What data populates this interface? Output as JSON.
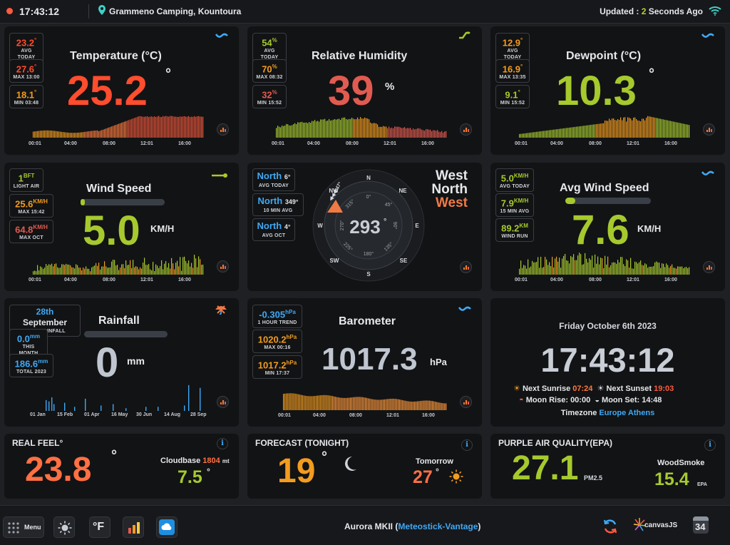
{
  "colors": {
    "red": "#ff4d2e",
    "orange": "#f39c1f",
    "green": "#a6c92e",
    "blue": "#3fa9f5",
    "coral": "#e15b50",
    "gray": "#bfc6cf"
  },
  "topbar": {
    "time": "17:43:12",
    "location": "Grammeno Camping, Kountoura",
    "updated_prefix": "Updated : ",
    "updated_num": "2",
    "updated_suffix": " Seconds Ago"
  },
  "temperature": {
    "title": "Temperature (°C)",
    "value": "25.2",
    "unit": "°",
    "stats": [
      {
        "value": "23.2",
        "unit": "°",
        "label": "AVG TODAY"
      },
      {
        "value": "27.6",
        "unit": "°",
        "label": "MAX 13:00"
      },
      {
        "value": "18.1",
        "unit": "°",
        "label": "MIN 03:48"
      }
    ],
    "ticks": [
      "00:01",
      "04:00",
      "08:00",
      "12:01",
      "16:00"
    ]
  },
  "humidity": {
    "title": "Relative Humidity",
    "value": "39",
    "unit": "%",
    "stats": [
      {
        "value": "54",
        "unit": "%",
        "label": "AVG TODAY"
      },
      {
        "value": "70",
        "unit": "%",
        "label": "MAX 08:32"
      },
      {
        "value": "32",
        "unit": "%",
        "label": "MIN 15:52"
      }
    ],
    "ticks": [
      "00:01",
      "04:00",
      "08:00",
      "12:01",
      "16:00"
    ]
  },
  "dewpoint": {
    "title": "Dewpoint (°C)",
    "value": "10.3",
    "unit": "°",
    "stats": [
      {
        "value": "12.9",
        "unit": "°",
        "label": "AVG TODAY"
      },
      {
        "value": "16.9",
        "unit": "°",
        "label": "MAX 13:35"
      },
      {
        "value": "9.1",
        "unit": "°",
        "label": "MIN 15:52"
      }
    ],
    "ticks": [
      "00:01",
      "04:00",
      "08:00",
      "12:01",
      "16:00"
    ]
  },
  "windspeed": {
    "title": "Wind Speed",
    "value": "5.0",
    "unit": "KM/H",
    "progress": 0.05,
    "stats": [
      {
        "value": "1",
        "unit": "BFT",
        "label": "LIGHT AIR"
      },
      {
        "value": "25.6",
        "unit": "KM/H",
        "label": "MAX 15:42"
      },
      {
        "value": "64.8",
        "unit": "KM/H",
        "label": "MAX OCT"
      }
    ],
    "ticks": [
      "00:01",
      "04:00",
      "08:00",
      "12:01",
      "16:00"
    ]
  },
  "direction": {
    "value": "293",
    "unit": "°",
    "name_line1": "West",
    "name_line2": "North",
    "name_line3": "West",
    "stats": [
      {
        "value": "North",
        "deg": "6°",
        "label": "AVG TODAY"
      },
      {
        "value": "North",
        "deg": "349°",
        "label": "10 MIN AVG"
      },
      {
        "value": "North",
        "deg": "4°",
        "label": "AVG OCT"
      }
    ],
    "compass": {
      "N": "N",
      "NE": "NE",
      "E": "E",
      "SE": "SE",
      "S": "S",
      "SW": "SW",
      "W": "W",
      "NW": "NW",
      "d0": "0°",
      "d45": "45°",
      "d90": "90°",
      "d135": "135°",
      "d180": "180°",
      "d225": "225°",
      "d270": "270°",
      "d315": "315°",
      "arrow_label": "◀◀◀-47°"
    }
  },
  "avgwind": {
    "title": "Avg Wind Speed",
    "value": "7.6",
    "unit": "KM/H",
    "progress": 0.12,
    "stats": [
      {
        "value": "5.0",
        "unit": "KM/H",
        "label": "AVG TODAY"
      },
      {
        "value": "7.9",
        "unit": "KM/H",
        "label": "15 MIN AVG"
      },
      {
        "value": "89.2",
        "unit": "KM",
        "label": "WIND RUN"
      }
    ],
    "ticks": [
      "00:01",
      "04:00",
      "08:00",
      "12:01",
      "16:00"
    ]
  },
  "rainfall": {
    "title": "Rainfall",
    "value": "0",
    "unit": "mm",
    "progress": 0,
    "last": {
      "value": "28th",
      "month": "September",
      "label": "LAST RAINFALL"
    },
    "stats": [
      {
        "value": "0.0",
        "unit": "mm",
        "label": "THIS MONTH"
      },
      {
        "value": "186.6",
        "unit": "mm",
        "label": "TOTAL 2023"
      }
    ],
    "ticks": [
      "01 Jan",
      "15 Feb",
      "01 Apr",
      "16 May",
      "30 Jun",
      "14 Aug",
      "28 Sep"
    ]
  },
  "barometer": {
    "title": "Barometer",
    "value": "1017.3",
    "unit": "hPa",
    "stats": [
      {
        "value": "-0.305",
        "unit": "hPa",
        "label": "1 HOUR TREND"
      },
      {
        "value": "1020.2",
        "unit": "hPa",
        "label": "MAX 00:16"
      },
      {
        "value": "1017.2",
        "unit": "hPa",
        "label": "MIN 17:37"
      }
    ],
    "ticks": [
      "00:01",
      "04:00",
      "08:00",
      "12:01",
      "16:00"
    ]
  },
  "clock": {
    "date": "Friday October 6th 2023",
    "time": "17:43:12",
    "sunrise_label": "Next Sunrise",
    "sunrise": "07:24",
    "sunset_label": "Next Sunset",
    "sunset": "19:03",
    "moonrise_label": "Moon Rise:",
    "moonrise": "00:00",
    "moonset_label": "Moon Set:",
    "moonset": "14:48",
    "tz_label": "Timezone",
    "tz": "Europe Athens"
  },
  "realfeel": {
    "title": "REAL FEEL°",
    "value": "23.8",
    "unit": "°",
    "sub_label": "Cloudbase",
    "sub_num": "1804",
    "sub_unit": "mt",
    "sub_value": "7.5",
    "sub_deg": "°"
  },
  "forecast": {
    "title": "FORECAST (TONIGHT)",
    "value": "19",
    "unit": "°",
    "tomorrow_label": "Tomorrow",
    "tomorrow": "27",
    "tomorrow_unit": "°"
  },
  "airquality": {
    "title": "PURPLE AIR QUALITY(EPA)",
    "value": "27.1",
    "unit": "PM2.5",
    "sub_label": "WoodSmoke",
    "sub_value": "15.4",
    "sub_unit": "EPA"
  },
  "bottombar": {
    "menu": "Menu",
    "fahrenheit": "°F",
    "footer_prefix": "Aurora MKII (",
    "footer_link": "Meteostick-Vantage",
    "footer_suffix": ")",
    "canvas": "canvasJS",
    "calendar_num": "34"
  }
}
